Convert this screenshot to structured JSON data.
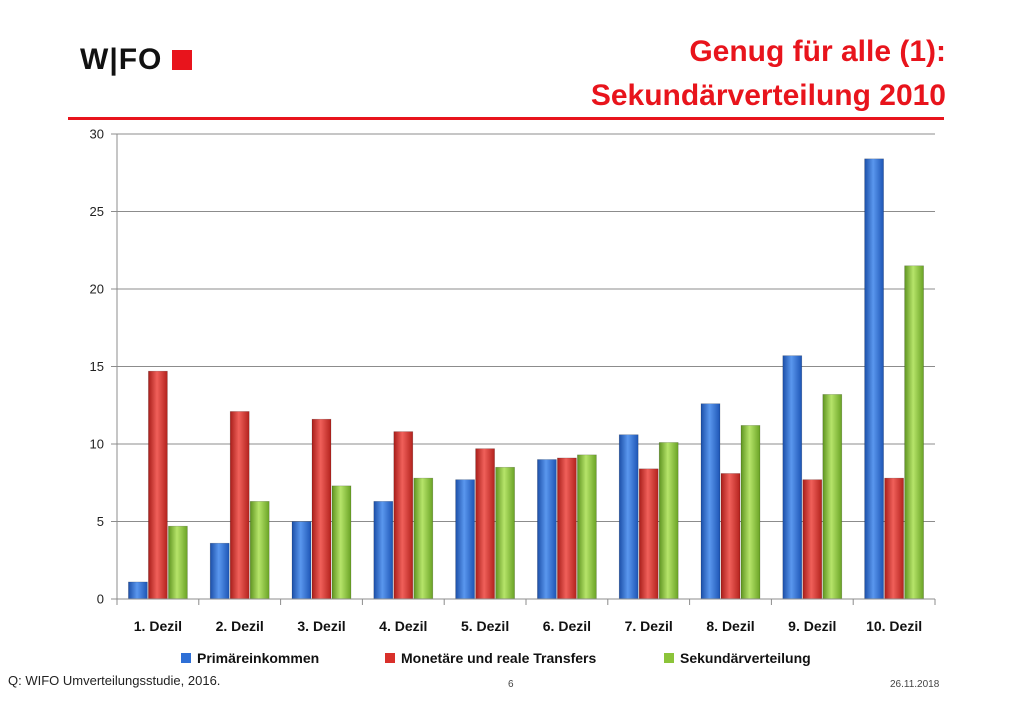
{
  "header": {
    "logo_text": "W|FO",
    "title_line1": "Genug für alle (1):",
    "title_line2": "Sekundärverteilung 2010"
  },
  "colors": {
    "accent": "#e8141c",
    "series": [
      "#2e6fd6",
      "#d9302b",
      "#8cc43a"
    ]
  },
  "chart_data": {
    "type": "bar",
    "categories": [
      "1. Dezil",
      "2. Dezil",
      "3. Dezil",
      "4. Dezil",
      "5. Dezil",
      "6. Dezil",
      "7. Dezil",
      "8. Dezil",
      "9. Dezil",
      "10. Dezil"
    ],
    "series": [
      {
        "name": "Primäreinkommen",
        "values": [
          1.1,
          3.6,
          5.0,
          6.3,
          7.7,
          9.0,
          10.6,
          12.6,
          15.7,
          28.4
        ]
      },
      {
        "name": "Monetäre und reale Transfers",
        "values": [
          14.7,
          12.1,
          11.6,
          10.8,
          9.7,
          9.1,
          8.4,
          8.1,
          7.7,
          7.8
        ]
      },
      {
        "name": "Sekundärverteilung",
        "values": [
          4.7,
          6.3,
          7.3,
          7.8,
          8.5,
          9.3,
          10.1,
          11.2,
          13.2,
          21.5
        ]
      }
    ],
    "ylim": [
      0,
      30
    ],
    "yticks": [
      "0",
      "5",
      "10",
      "15",
      "20",
      "25",
      "30"
    ],
    "grid": true,
    "legend_position": "bottom"
  },
  "footer": {
    "source": "Q: WIFO Umverteilungsstudie, 2016.",
    "page": "6",
    "date": "26.11.2018"
  }
}
